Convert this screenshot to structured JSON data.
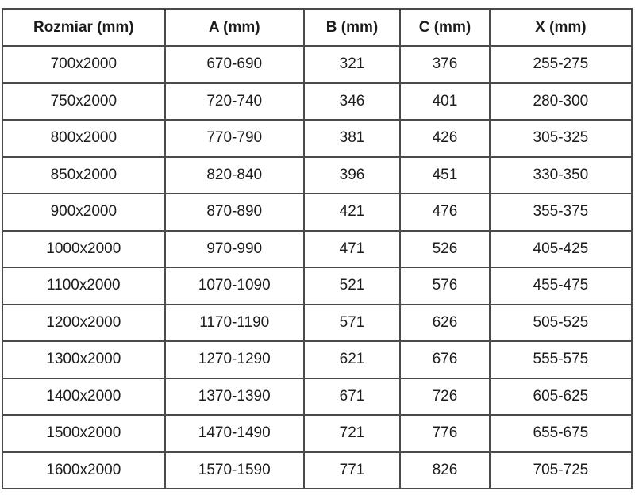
{
  "chart_data": {
    "type": "table",
    "columns": [
      "Rozmiar (mm)",
      "A (mm)",
      "B (mm)",
      "C (mm)",
      "X (mm)"
    ],
    "rows": [
      [
        "700x2000",
        "670-690",
        "321",
        "376",
        "255-275"
      ],
      [
        "750x2000",
        "720-740",
        "346",
        "401",
        "280-300"
      ],
      [
        "800x2000",
        "770-790",
        "381",
        "426",
        "305-325"
      ],
      [
        "850x2000",
        "820-840",
        "396",
        "451",
        "330-350"
      ],
      [
        "900x2000",
        "870-890",
        "421",
        "476",
        "355-375"
      ],
      [
        "1000x2000",
        "970-990",
        "471",
        "526",
        "405-425"
      ],
      [
        "1100x2000",
        "1070-1090",
        "521",
        "576",
        "455-475"
      ],
      [
        "1200x2000",
        "1170-1190",
        "571",
        "626",
        "505-525"
      ],
      [
        "1300x2000",
        "1270-1290",
        "621",
        "676",
        "555-575"
      ],
      [
        "1400x2000",
        "1370-1390",
        "671",
        "726",
        "605-625"
      ],
      [
        "1500x2000",
        "1470-1490",
        "721",
        "776",
        "655-675"
      ],
      [
        "1600x2000",
        "1570-1590",
        "771",
        "826",
        "705-725"
      ]
    ],
    "layout": {
      "grid": true,
      "border_color": "#4a4a4a",
      "background": "#ffffff",
      "text_color": "#1c1c1c"
    }
  }
}
